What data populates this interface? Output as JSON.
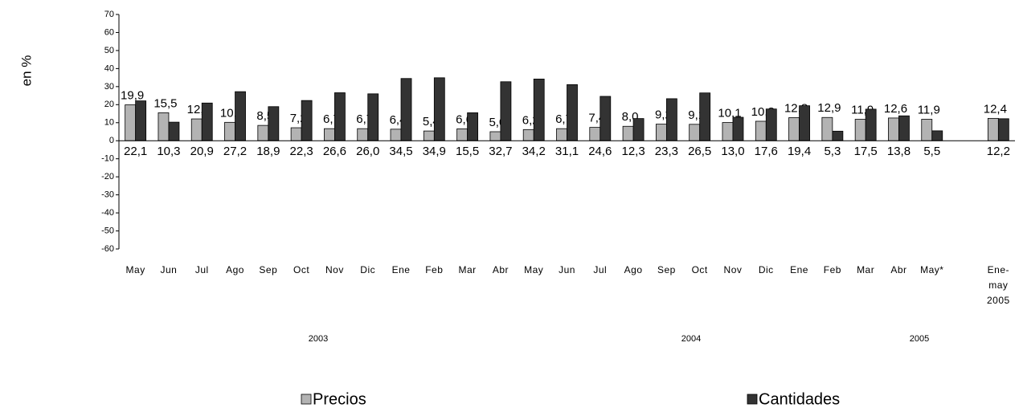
{
  "chart_data": {
    "type": "bar",
    "y_label": "en %",
    "categories": [
      "May",
      "Jun",
      "Jul",
      "Ago",
      "Sep",
      "Oct",
      "Nov",
      "Dic",
      "Ene",
      "Feb",
      "Mar",
      "Abr",
      "May",
      "Jun",
      "Jul",
      "Ago",
      "Sep",
      "Oct",
      "Nov",
      "Dic",
      "Ene",
      "Feb",
      "Mar",
      "Abr",
      "May*",
      null,
      "Ene-may 2005"
    ],
    "group_labels": [
      "2003",
      "2004",
      "2005"
    ],
    "series": [
      {
        "name": "Precios",
        "color": "#b3b3b3",
        "values": [
          19.9,
          15.5,
          12.1,
          10.2,
          8.5,
          7.2,
          6.7,
          6.7,
          6.4,
          5.4,
          6.6,
          5.0,
          6.2,
          6.7,
          7.4,
          8.0,
          9.2,
          9.1,
          10.1,
          10.8,
          12.8,
          12.9,
          11.9,
          12.6,
          11.9,
          null,
          12.4
        ],
        "value_labels": [
          "19,9",
          "15,5",
          "12,1",
          "10,2",
          "8,5",
          "7,2",
          "6,7",
          "6,7",
          "6,4",
          "5,4",
          "6,6",
          "5,0",
          "6,2",
          "6,7",
          "7,4",
          "8,0",
          "9,2",
          "9,1",
          "10,1",
          "10,8",
          "12,8",
          "12,9",
          "11,9",
          "12,6",
          "11,9",
          null,
          "12,4"
        ]
      },
      {
        "name": "Cantidades",
        "color": "#333333",
        "values": [
          22.1,
          10.3,
          20.9,
          27.2,
          18.9,
          22.3,
          26.6,
          26.0,
          34.5,
          34.9,
          15.5,
          32.7,
          34.2,
          31.1,
          24.6,
          12.3,
          23.3,
          26.5,
          13.0,
          17.6,
          19.4,
          5.3,
          17.5,
          13.8,
          5.5,
          null,
          12.2
        ],
        "value_labels": [
          "22,1",
          "10,3",
          "20,9",
          "27,2",
          "18,9",
          "22,3",
          "26,6",
          "26,0",
          "34,5",
          "34,9",
          "15,5",
          "32,7",
          "34,2",
          "31,1",
          "24,6",
          "12,3",
          "23,3",
          "26,5",
          "13,0",
          "17,6",
          "19,4",
          "5,3",
          "17,5",
          "13,8",
          "5,5",
          null,
          "12,2"
        ]
      }
    ],
    "ylim": [
      -60,
      70
    ],
    "yticks": [
      -60,
      -50,
      -40,
      -30,
      -20,
      -10,
      0,
      10,
      20,
      30,
      40,
      50,
      60,
      70
    ]
  }
}
